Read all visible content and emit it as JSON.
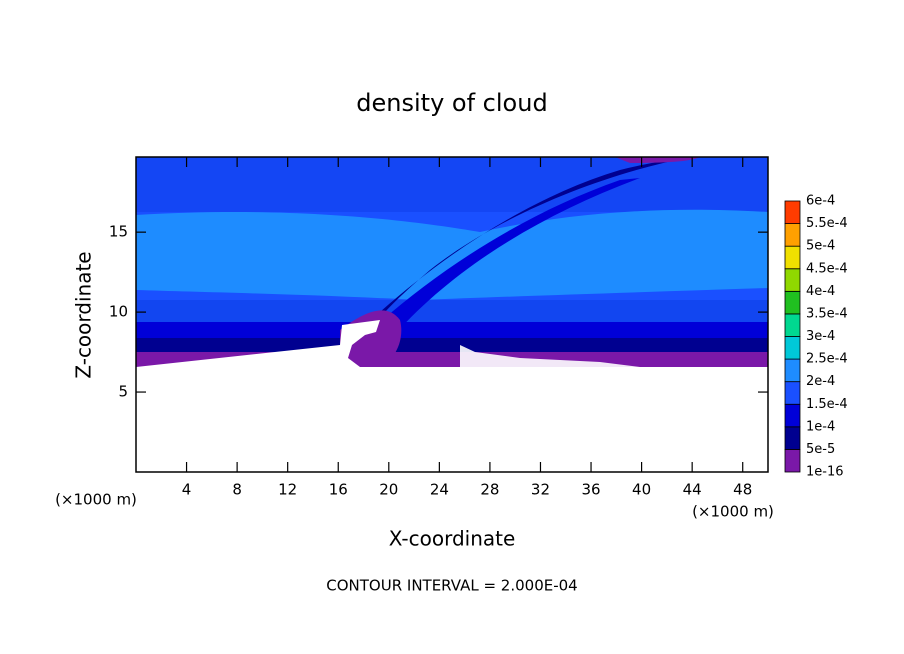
{
  "chart_data": {
    "type": "contour",
    "title": "density of cloud",
    "x_label": "X-coordinate",
    "y_label": "Z-coordinate",
    "x_unit": "(×1000 m)",
    "footer": "CONTOUR INTERVAL = 2.000E-04",
    "xlim": [
      0,
      50
    ],
    "ylim": [
      0,
      19.7
    ],
    "xticks": [
      4,
      8,
      12,
      16,
      20,
      24,
      28,
      32,
      36,
      40,
      44,
      48
    ],
    "yticks": [
      5,
      10,
      15
    ],
    "colorbar": {
      "levels": [
        {
          "value": 1e-16,
          "label": "1e-16"
        },
        {
          "value": 5e-05,
          "label": "5e-5"
        },
        {
          "value": 0.0001,
          "label": "1e-4"
        },
        {
          "value": 0.00015,
          "label": "1.5e-4"
        },
        {
          "value": 0.0002,
          "label": "2e-4"
        },
        {
          "value": 0.00025,
          "label": "2.5e-4"
        },
        {
          "value": 0.0003,
          "label": "3e-4"
        },
        {
          "value": 0.00035,
          "label": "3.5e-4"
        },
        {
          "value": 0.0004,
          "label": "4e-4"
        },
        {
          "value": 0.00045,
          "label": "4.5e-4"
        },
        {
          "value": 0.0005,
          "label": "5e-4"
        },
        {
          "value": 0.00055,
          "label": "5.5e-4"
        },
        {
          "value": 0.0006,
          "label": "6e-4"
        }
      ],
      "colors": [
        "#7a18a8",
        "#000090",
        "#0000d8",
        "#1a50ff",
        "#1e8cff",
        "#00c8d8",
        "#00d890",
        "#20c020",
        "#90d800",
        "#f0e000",
        "#ffa000",
        "#ff3c00",
        "#ff8080"
      ]
    }
  }
}
